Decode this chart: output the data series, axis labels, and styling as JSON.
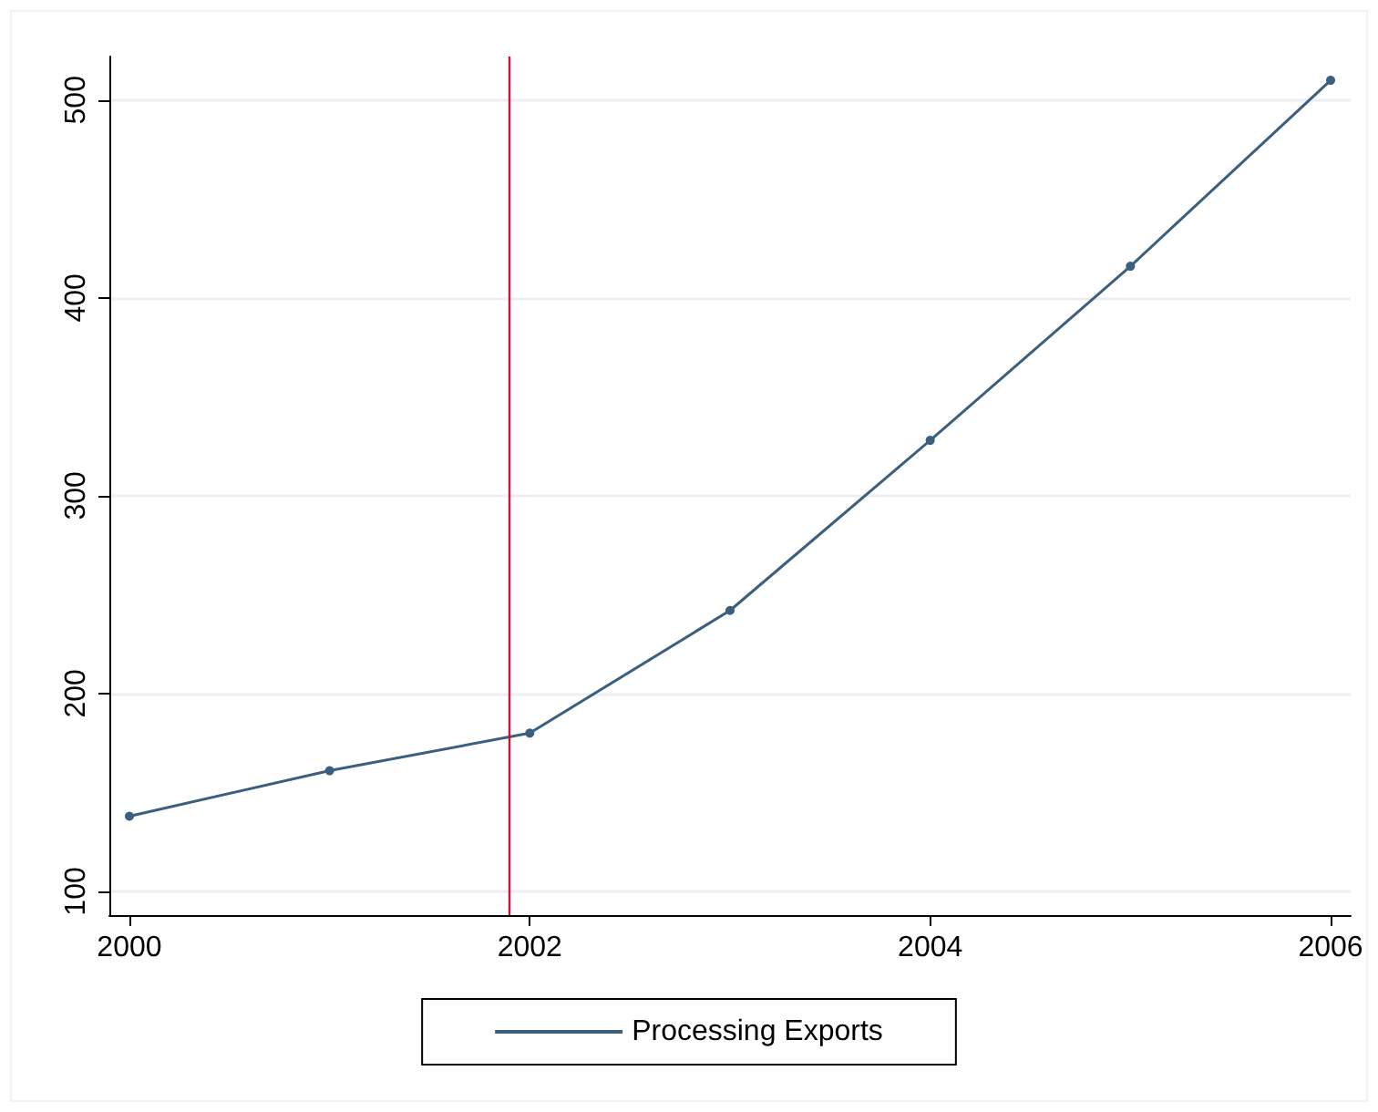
{
  "chart_data": {
    "type": "line",
    "x": [
      2000,
      2001,
      2002,
      2003,
      2004,
      2005,
      2006
    ],
    "series": [
      {
        "name": "Processing Exports",
        "color": "#3b5f7f",
        "values": [
          138,
          161,
          180,
          242,
          328,
          416,
          510
        ]
      }
    ],
    "xlim": [
      1999.9,
      2006.1
    ],
    "xticks": [
      2000,
      2002,
      2004,
      2006
    ],
    "ylim": [
      88,
      522
    ],
    "yticks": [
      100,
      200,
      300,
      400,
      500
    ],
    "ref_lines": [
      {
        "axis": "x",
        "value": 2001.9,
        "color": "#d0103a"
      }
    ],
    "grid": "y",
    "legend": "bottom",
    "marker": "circle",
    "line_style": "solid"
  }
}
